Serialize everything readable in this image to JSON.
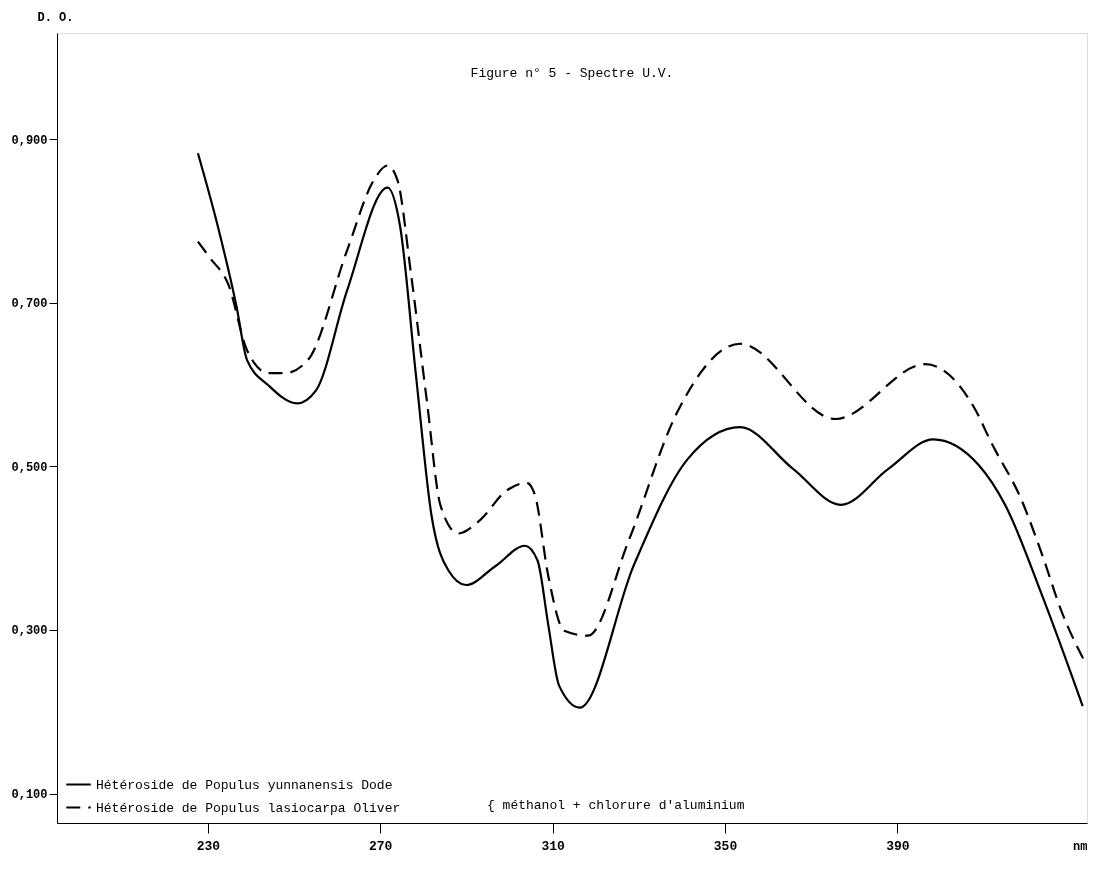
{
  "chart_data": {
    "type": "line",
    "title": "Figure n° 5 - Spectre U.V.",
    "xlabel": "nm",
    "ylabel": "D. O.",
    "xlim": [
      195,
      434
    ],
    "ylim": [
      0.064,
      1.03
    ],
    "xticks": [
      230,
      270,
      310,
      350,
      390
    ],
    "yticks": [
      {
        "value": 0.1,
        "label": "0,100"
      },
      {
        "value": 0.3,
        "label": "0,300"
      },
      {
        "value": 0.5,
        "label": "0,500"
      },
      {
        "value": 0.7,
        "label": "0,700"
      },
      {
        "value": 0.9,
        "label": "0,900"
      }
    ],
    "grid": false,
    "legend": "bottom left",
    "marker": "none",
    "annotations": [
      "{ méthanol + chlorure d'aluminium"
    ],
    "series": [
      {
        "name": "Hétéroside de Populus yunnanensis Dode",
        "color": "#000000",
        "line_style": "solid",
        "x": [
          227.7,
          232.3,
          236.6,
          239.1,
          244.1,
          250.7,
          255.1,
          262.3,
          271.7,
          274.6,
          278.3,
          281.9,
          285.8,
          289.9,
          296.7,
          303.6,
          306.5,
          309,
          311.5,
          316.3,
          328.9,
          341.2,
          353.5,
          365.8,
          376.9,
          387.9,
          398.3,
          408.8,
          415,
          423.6,
          433
        ],
        "values": [
          0.883,
          0.794,
          0.697,
          0.63,
          0.599,
          0.577,
          0.593,
          0.715,
          0.841,
          0.794,
          0.611,
          0.44,
          0.373,
          0.355,
          0.378,
          0.403,
          0.385,
          0.306,
          0.232,
          0.205,
          0.38,
          0.508,
          0.548,
          0.497,
          0.453,
          0.497,
          0.533,
          0.502,
          0.453,
          0.342,
          0.207
        ]
      },
      {
        "name": "Hétéroside de Populus lasiocarpa Oliver",
        "color": "#000000",
        "line_style": "dashed",
        "x": [
          227.7,
          230.5,
          234.8,
          239.1,
          244.1,
          247.8,
          253.2,
          262.3,
          268.5,
          271.7,
          274,
          277.2,
          280.8,
          284,
          288.1,
          293.1,
          299.2,
          304,
          305.9,
          309,
          312.7,
          318.2,
          327.7,
          338.7,
          353.5,
          375.6,
          396.5,
          407.7,
          412,
          418.8,
          423.6,
          428,
          433.4
        ],
        "values": [
          0.775,
          0.755,
          0.722,
          0.642,
          0.614,
          0.614,
          0.63,
          0.764,
          0.85,
          0.868,
          0.85,
          0.733,
          0.581,
          0.452,
          0.418,
          0.434,
          0.47,
          0.48,
          0.465,
          0.366,
          0.299,
          0.293,
          0.41,
          0.564,
          0.65,
          0.558,
          0.625,
          0.573,
          0.527,
          0.459,
          0.392,
          0.324,
          0.262
        ]
      }
    ]
  }
}
